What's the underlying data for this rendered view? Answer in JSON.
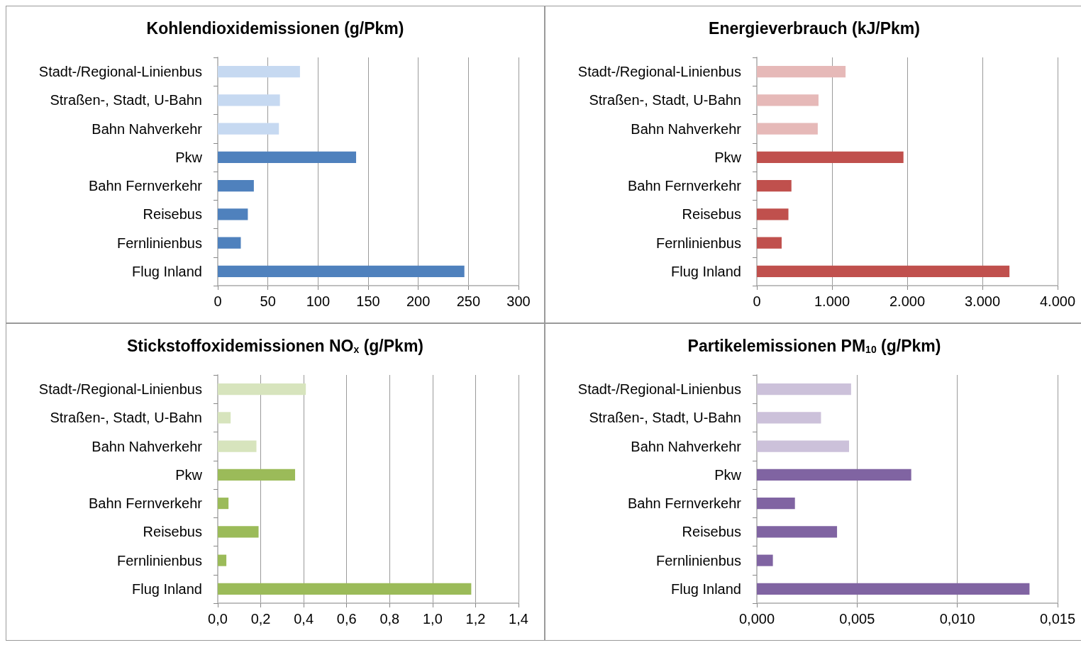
{
  "chart_data": [
    {
      "type": "bar",
      "orientation": "horizontal",
      "title": "Kohlendioxidemissionen (g/Pkm)",
      "categories": [
        "Stadt-/Regional-Linienbus",
        "Straßen-, Stadt, U-Bahn",
        "Bahn Nahverkehr",
        "Pkw",
        "Bahn Fernverkehr",
        "Reisebus",
        "Fernlinienbus",
        "Flug Inland"
      ],
      "values": [
        82,
        62,
        61,
        138,
        36,
        30,
        23,
        246
      ],
      "colors": [
        "#c6d9f1",
        "#c6d9f1",
        "#c6d9f1",
        "#4f81bd",
        "#4f81bd",
        "#4f81bd",
        "#4f81bd",
        "#4f81bd"
      ],
      "xlim": [
        0,
        300
      ],
      "xticks": [
        0,
        50,
        100,
        150,
        200,
        250,
        300
      ],
      "grid": "x"
    },
    {
      "type": "bar",
      "orientation": "horizontal",
      "title": "Energieverbrauch (kJ/Pkm)",
      "categories": [
        "Stadt-/Regional-Linienbus",
        "Straßen-, Stadt, U-Bahn",
        "Bahn Nahverkehr",
        "Pkw",
        "Bahn Fernverkehr",
        "Reisebus",
        "Fernlinienbus",
        "Flug Inland"
      ],
      "values": [
        1180,
        820,
        810,
        1950,
        460,
        420,
        330,
        3360
      ],
      "colors": [
        "#e6b9b8",
        "#e6b9b8",
        "#e6b9b8",
        "#c0504d",
        "#c0504d",
        "#c0504d",
        "#c0504d",
        "#c0504d"
      ],
      "xlim": [
        0,
        4000
      ],
      "xticks": [
        0,
        {
          "value": 1000,
          "label": "1.000"
        },
        {
          "value": 2000,
          "label": "2.000"
        },
        {
          "value": 3000,
          "label": "3.000"
        },
        {
          "value": 4000,
          "label": "4.000"
        }
      ],
      "grid": "x"
    },
    {
      "type": "bar",
      "orientation": "horizontal",
      "title": "Stickstoffoxidemissionen NO$_{x}$ (g/Pkm)",
      "categories": [
        "Stadt-/Regional-Linienbus",
        "Straßen-, Stadt, U-Bahn",
        "Bahn Nahverkehr",
        "Pkw",
        "Bahn Fernverkehr",
        "Reisebus",
        "Fernlinienbus",
        "Flug Inland"
      ],
      "values": [
        0.41,
        0.06,
        0.18,
        0.36,
        0.05,
        0.19,
        0.04,
        1.18
      ],
      "colors": [
        "#d7e4bd",
        "#d7e4bd",
        "#d7e4bd",
        "#9bbb59",
        "#9bbb59",
        "#9bbb59",
        "#9bbb59",
        "#9bbb59"
      ],
      "xlim": [
        0,
        1.4
      ],
      "xticks": [
        {
          "value": 0,
          "label": "0,0"
        },
        {
          "value": 0.2,
          "label": "0,2"
        },
        {
          "value": 0.4,
          "label": "0,4"
        },
        {
          "value": 0.6,
          "label": "0,6"
        },
        {
          "value": 0.8,
          "label": "0,8"
        },
        {
          "value": 1.0,
          "label": "1,0"
        },
        {
          "value": 1.2,
          "label": "1,2"
        },
        {
          "value": 1.4,
          "label": "1,4"
        }
      ],
      "grid": "x"
    },
    {
      "type": "bar",
      "orientation": "horizontal",
      "title": "Partikelemissionen PM$_{10}$ (g/Pkm)",
      "categories": [
        "Stadt-/Regional-Linienbus",
        "Straßen-, Stadt, U-Bahn",
        "Bahn Nahverkehr",
        "Pkw",
        "Bahn Fernverkehr",
        "Reisebus",
        "Fernlinienbus",
        "Flug Inland"
      ],
      "values": [
        0.0047,
        0.0032,
        0.0046,
        0.0077,
        0.0019,
        0.004,
        0.0008,
        0.0136
      ],
      "colors": [
        "#ccc1da",
        "#ccc1da",
        "#ccc1da",
        "#8064a2",
        "#8064a2",
        "#8064a2",
        "#8064a2",
        "#8064a2"
      ],
      "xlim": [
        0,
        0.015
      ],
      "xticks": [
        {
          "value": 0,
          "label": "0,000"
        },
        {
          "value": 0.005,
          "label": "0,005"
        },
        {
          "value": 0.01,
          "label": "0,010"
        },
        {
          "value": 0.015,
          "label": "0,015"
        }
      ],
      "grid": "x"
    }
  ]
}
